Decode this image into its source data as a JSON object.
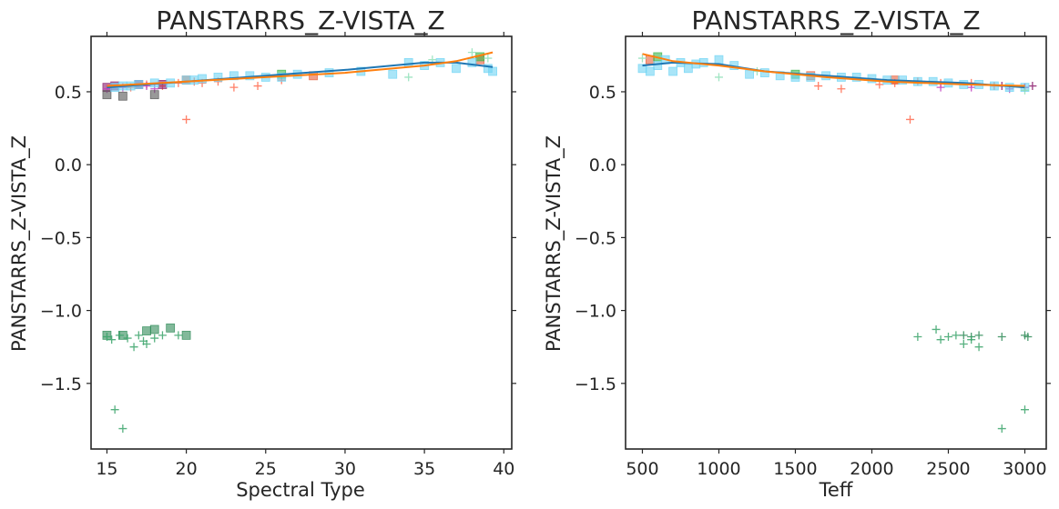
{
  "chart_data": [
    {
      "type": "scatter",
      "title": "PANSTARRS_Z-VISTA_Z",
      "xlabel": "Spectral Type",
      "ylabel": "PANSTARRS_Z-VISTA_Z",
      "xlim": [
        14,
        40.5
      ],
      "ylim": [
        -1.95,
        0.88
      ],
      "xticks": [
        15,
        20,
        25,
        30,
        35,
        40
      ],
      "yticks": [
        -1.5,
        -1.0,
        -0.5,
        0.0,
        0.5
      ],
      "grid": false,
      "series": [
        {
          "color": "#ff6a4d",
          "marker": "plus",
          "points": [
            [
              16.5,
              0.53
            ],
            [
              17.5,
              0.55
            ],
            [
              18.5,
              0.54
            ],
            [
              19.5,
              0.56
            ],
            [
              20.0,
              0.31
            ],
            [
              20.5,
              0.57
            ],
            [
              21.0,
              0.56
            ],
            [
              22.0,
              0.57
            ],
            [
              23.0,
              0.53
            ],
            [
              24.5,
              0.54
            ],
            [
              26.0,
              0.58
            ]
          ]
        },
        {
          "color": "#e8603c",
          "marker": "square",
          "points": [
            [
              20.0,
              0.58
            ],
            [
              28.0,
              0.61
            ],
            [
              38.5,
              0.72
            ]
          ]
        },
        {
          "color": "#8b1a6b",
          "marker": "square",
          "points": [
            [
              15.0,
              0.53
            ],
            [
              15.5,
              0.54
            ],
            [
              17.0,
              0.55
            ],
            [
              18.5,
              0.55
            ]
          ]
        },
        {
          "color": "#c03cc0",
          "marker": "plus",
          "points": [
            [
              15.0,
              0.52
            ],
            [
              16.0,
              0.53
            ],
            [
              17.5,
              0.54
            ],
            [
              18.0,
              0.52
            ]
          ]
        },
        {
          "color": "#555555",
          "marker": "square",
          "points": [
            [
              15.0,
              0.48
            ],
            [
              16.0,
              0.47
            ],
            [
              18.0,
              0.48
            ]
          ]
        },
        {
          "color": "#2e8b57",
          "marker": "square",
          "points": [
            [
              15.0,
              -1.17
            ],
            [
              16.0,
              -1.17
            ],
            [
              17.5,
              -1.14
            ],
            [
              18.0,
              -1.13
            ],
            [
              19.0,
              -1.12
            ],
            [
              20.0,
              -1.17
            ]
          ]
        },
        {
          "color": "#3aa36a",
          "marker": "plus",
          "points": [
            [
              15.0,
              -1.18
            ],
            [
              15.3,
              -1.2
            ],
            [
              15.5,
              -1.68
            ],
            [
              15.8,
              -1.17
            ],
            [
              16.0,
              -1.81
            ],
            [
              16.3,
              -1.19
            ],
            [
              16.7,
              -1.25
            ],
            [
              17.0,
              -1.17
            ],
            [
              17.3,
              -1.21
            ],
            [
              17.5,
              -1.23
            ],
            [
              18.0,
              -1.19
            ],
            [
              18.5,
              -1.17
            ],
            [
              19.5,
              -1.17
            ]
          ]
        },
        {
          "color": "#3cb44b",
          "marker": "square",
          "points": [
            [
              26.0,
              0.62
            ],
            [
              38.5,
              0.74
            ]
          ]
        },
        {
          "color": "#70d4f4",
          "marker": "square",
          "points": [
            [
              15.5,
              0.53
            ],
            [
              16.0,
              0.54
            ],
            [
              16.5,
              0.54
            ],
            [
              17.0,
              0.55
            ],
            [
              18.0,
              0.56
            ],
            [
              19.0,
              0.56
            ],
            [
              20.0,
              0.58
            ],
            [
              20.5,
              0.58
            ],
            [
              21.0,
              0.59
            ],
            [
              22.0,
              0.6
            ],
            [
              23.0,
              0.61
            ],
            [
              24.0,
              0.61
            ],
            [
              25.0,
              0.6
            ],
            [
              26.0,
              0.6
            ],
            [
              27.0,
              0.62
            ],
            [
              29.0,
              0.63
            ],
            [
              31.0,
              0.64
            ],
            [
              33.0,
              0.62
            ],
            [
              34.0,
              0.7
            ],
            [
              35.0,
              0.68
            ],
            [
              36.0,
              0.7
            ],
            [
              37.0,
              0.66
            ],
            [
              38.0,
              0.7
            ],
            [
              39.0,
              0.66
            ],
            [
              39.3,
              0.64
            ]
          ]
        },
        {
          "color": "#90e0b8",
          "marker": "plus",
          "points": [
            [
              34.0,
              0.6
            ],
            [
              35.5,
              0.72
            ],
            [
              38.0,
              0.77
            ],
            [
              39.0,
              0.73
            ]
          ]
        }
      ],
      "fit_lines": [
        {
          "color": "#1f77b4",
          "points": [
            [
              15,
              0.53
            ],
            [
              20,
              0.57
            ],
            [
              25,
              0.61
            ],
            [
              30,
              0.65
            ],
            [
              35,
              0.7
            ],
            [
              37,
              0.7
            ],
            [
              39.3,
              0.67
            ]
          ]
        },
        {
          "color": "#ff7f0e",
          "points": [
            [
              15,
              0.54
            ],
            [
              20,
              0.57
            ],
            [
              25,
              0.6
            ],
            [
              30,
              0.63
            ],
            [
              35,
              0.68
            ],
            [
              37,
              0.71
            ],
            [
              39.3,
              0.77
            ]
          ]
        }
      ]
    },
    {
      "type": "scatter",
      "title": "PANSTARRS_Z-VISTA_Z",
      "xlabel": "Teff",
      "ylabel": "PANSTARRS_Z-VISTA_Z",
      "xlim": [
        390,
        3140
      ],
      "ylim": [
        -1.95,
        0.88
      ],
      "xticks": [
        500,
        1000,
        1500,
        2000,
        2500,
        3000
      ],
      "yticks": [
        -1.5,
        -1.0,
        -0.5,
        0.0,
        0.5
      ],
      "grid": false,
      "series": [
        {
          "color": "#ff6a4d",
          "marker": "plus",
          "points": [
            [
              1650,
              0.54
            ],
            [
              1800,
              0.52
            ],
            [
              2050,
              0.55
            ],
            [
              2150,
              0.56
            ],
            [
              2250,
              0.31
            ],
            [
              2300,
              0.57
            ],
            [
              2450,
              0.56
            ],
            [
              2650,
              0.56
            ],
            [
              2800,
              0.54
            ]
          ]
        },
        {
          "color": "#e8603c",
          "marker": "square",
          "points": [
            [
              2150,
              0.58
            ],
            [
              1600,
              0.61
            ],
            [
              550,
              0.72
            ]
          ]
        },
        {
          "color": "#8b1a6b",
          "marker": "plus",
          "points": [
            [
              2850,
              0.54
            ],
            [
              3000,
              0.53
            ],
            [
              3050,
              0.54
            ]
          ]
        },
        {
          "color": "#c03cc0",
          "marker": "plus",
          "points": [
            [
              2450,
              0.53
            ],
            [
              2650,
              0.53
            ],
            [
              2900,
              0.52
            ],
            [
              3000,
              0.53
            ]
          ]
        },
        {
          "color": "#2e8b57",
          "marker": "plus",
          "points": [
            [
              2600,
              -1.17
            ],
            [
              2650,
              -1.18
            ],
            [
              2700,
              -1.17
            ],
            [
              2850,
              -1.18
            ],
            [
              3000,
              -1.17
            ],
            [
              3020,
              -1.18
            ]
          ]
        },
        {
          "color": "#3aa36a",
          "marker": "plus",
          "points": [
            [
              2300,
              -1.18
            ],
            [
              2420,
              -1.13
            ],
            [
              2450,
              -1.2
            ],
            [
              2500,
              -1.18
            ],
            [
              2600,
              -1.23
            ],
            [
              2650,
              -1.2
            ],
            [
              2700,
              -1.25
            ],
            [
              2850,
              -1.81
            ],
            [
              3000,
              -1.68
            ],
            [
              2550,
              -1.17
            ]
          ]
        },
        {
          "color": "#3cb44b",
          "marker": "square",
          "points": [
            [
              1500,
              0.62
            ],
            [
              600,
              0.74
            ]
          ]
        },
        {
          "color": "#70d4f4",
          "marker": "square",
          "points": [
            [
              500,
              0.66
            ],
            [
              550,
              0.64
            ],
            [
              600,
              0.68
            ],
            [
              650,
              0.72
            ],
            [
              700,
              0.64
            ],
            [
              750,
              0.7
            ],
            [
              800,
              0.66
            ],
            [
              850,
              0.69
            ],
            [
              900,
              0.7
            ],
            [
              1000,
              0.72
            ],
            [
              1100,
              0.68
            ],
            [
              1200,
              0.62
            ],
            [
              1300,
              0.63
            ],
            [
              1400,
              0.61
            ],
            [
              1500,
              0.6
            ],
            [
              1600,
              0.6
            ],
            [
              1700,
              0.61
            ],
            [
              1800,
              0.6
            ],
            [
              1900,
              0.6
            ],
            [
              2000,
              0.59
            ],
            [
              2100,
              0.58
            ],
            [
              2200,
              0.58
            ],
            [
              2300,
              0.57
            ],
            [
              2400,
              0.57
            ],
            [
              2500,
              0.56
            ],
            [
              2600,
              0.55
            ],
            [
              2700,
              0.55
            ],
            [
              2800,
              0.54
            ],
            [
              2900,
              0.53
            ],
            [
              3000,
              0.53
            ]
          ]
        },
        {
          "color": "#90e0b8",
          "marker": "plus",
          "points": [
            [
              500,
              0.73
            ],
            [
              1000,
              0.6
            ],
            [
              1250,
              0.64
            ],
            [
              3000,
              0.51
            ]
          ]
        }
      ],
      "fit_lines": [
        {
          "color": "#1f77b4",
          "points": [
            [
              500,
              0.68
            ],
            [
              700,
              0.7
            ],
            [
              1000,
              0.69
            ],
            [
              1300,
              0.64
            ],
            [
              1700,
              0.61
            ],
            [
              2100,
              0.58
            ],
            [
              2600,
              0.56
            ],
            [
              3000,
              0.53
            ]
          ]
        },
        {
          "color": "#ff7f0e",
          "points": [
            [
              500,
              0.76
            ],
            [
              700,
              0.71
            ],
            [
              1000,
              0.68
            ],
            [
              1300,
              0.64
            ],
            [
              1700,
              0.6
            ],
            [
              2100,
              0.57
            ],
            [
              2600,
              0.55
            ],
            [
              3000,
              0.54
            ]
          ]
        }
      ]
    }
  ]
}
